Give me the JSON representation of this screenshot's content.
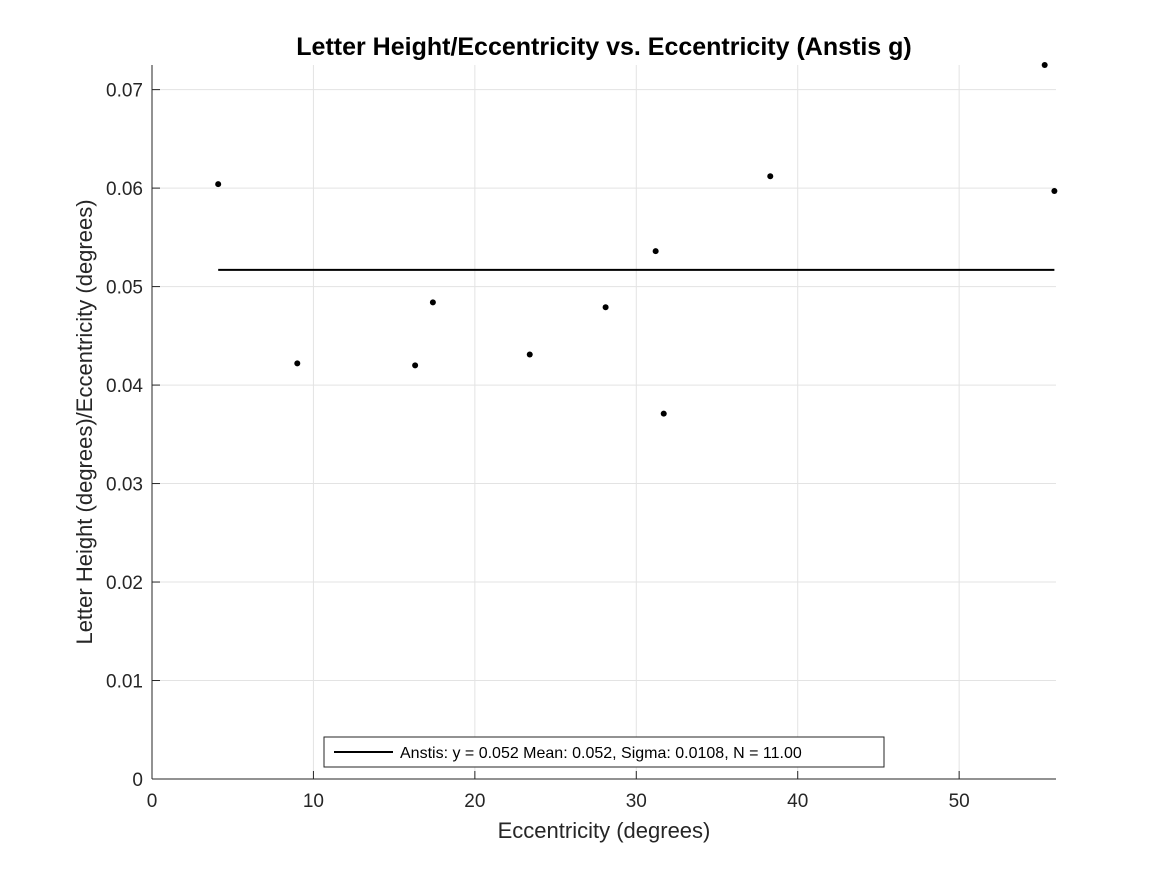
{
  "chart_data": {
    "type": "scatter",
    "title": "Letter Height/Eccentricity vs. Eccentricity (Anstis g)",
    "xlabel": "Eccentricity (degrees)",
    "ylabel": "Letter Height (degrees)/Eccentricity (degrees)",
    "xlim": [
      0,
      56
    ],
    "ylim": [
      0,
      0.0725
    ],
    "xticks": [
      0,
      10,
      20,
      30,
      40,
      50
    ],
    "xtick_labels": [
      "0",
      "10",
      "20",
      "30",
      "40",
      "50"
    ],
    "yticks": [
      0,
      0.01,
      0.02,
      0.03,
      0.04,
      0.05,
      0.06,
      0.07
    ],
    "ytick_labels": [
      "0",
      "0.01",
      "0.02",
      "0.03",
      "0.04",
      "0.05",
      "0.06",
      "0.07"
    ],
    "grid": true,
    "legend_location": "bottom-center",
    "series": [
      {
        "kind": "points",
        "color": "#000000",
        "points": [
          {
            "x": 4.1,
            "y": 0.0604
          },
          {
            "x": 9.0,
            "y": 0.0422
          },
          {
            "x": 16.3,
            "y": 0.042
          },
          {
            "x": 17.4,
            "y": 0.0484
          },
          {
            "x": 23.4,
            "y": 0.0431
          },
          {
            "x": 28.1,
            "y": 0.0479
          },
          {
            "x": 31.2,
            "y": 0.0536
          },
          {
            "x": 31.7,
            "y": 0.0371
          },
          {
            "x": 38.3,
            "y": 0.0612
          },
          {
            "x": 55.3,
            "y": 0.0725
          },
          {
            "x": 55.9,
            "y": 0.0597
          }
        ]
      },
      {
        "kind": "line",
        "name": "Anstis: y = 0.052 Mean: 0.052, Sigma: 0.0108, N = 11.00",
        "color": "#000000",
        "x": [
          4.1,
          55.9
        ],
        "y": [
          0.0517,
          0.0517
        ]
      }
    ]
  }
}
